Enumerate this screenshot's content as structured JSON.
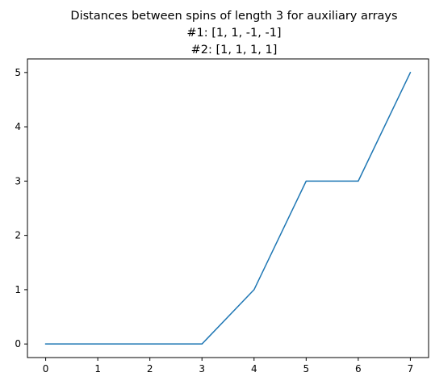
{
  "chart_data": {
    "type": "line",
    "title_lines": [
      "Distances between spins of length 3 for auxiliary arrays",
      "#1:  [1, 1, -1, -1]",
      "#2: [1, 1, 1, 1]"
    ],
    "x": [
      0,
      1,
      2,
      3,
      4,
      5,
      6,
      7
    ],
    "series": [
      {
        "values": [
          0,
          0,
          0,
          0,
          1,
          3,
          3,
          5
        ]
      }
    ],
    "x_ticks": [
      "0",
      "1",
      "2",
      "3",
      "4",
      "5",
      "6",
      "7"
    ],
    "y_ticks": [
      "0",
      "1",
      "2",
      "3",
      "4",
      "5"
    ],
    "xlim": [
      -0.35,
      7.35
    ],
    "ylim": [
      -0.25,
      5.25
    ],
    "grid": false,
    "line_color": "#1f77b4",
    "axis_color": "#000000"
  }
}
